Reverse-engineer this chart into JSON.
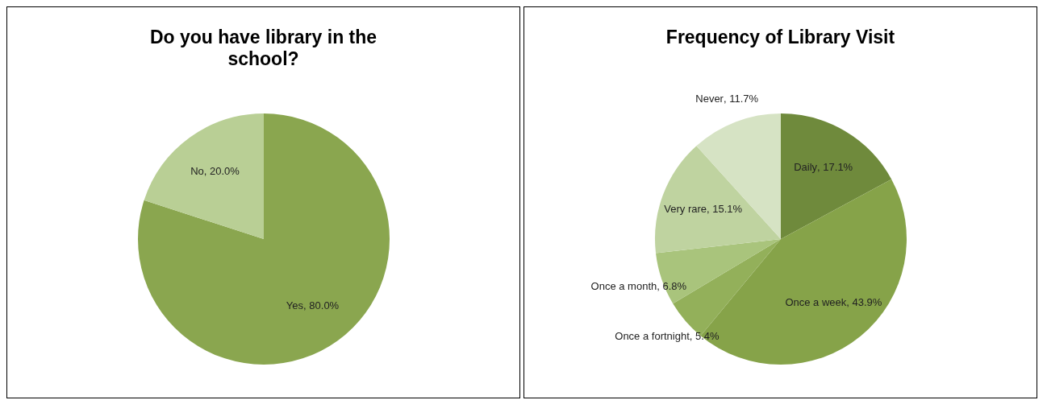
{
  "chart_data": [
    {
      "type": "pie",
      "title": "Do you have library in the school?",
      "categories": [
        "Yes",
        "No"
      ],
      "values": [
        80.0,
        20.0
      ],
      "colors": [
        "#8aa64f",
        "#b9cf95"
      ],
      "value_labels": [
        ", 80.0%",
        ", 20.0%"
      ]
    },
    {
      "type": "pie",
      "title": "Frequency of Library Visit",
      "categories": [
        "Daily",
        "Once a week",
        "Once a fortnight",
        "Once a month",
        "Very rare",
        "Never"
      ],
      "values": [
        17.1,
        43.9,
        5.4,
        6.8,
        15.1,
        11.7
      ],
      "colors": [
        "#6f8a3c",
        "#86a349",
        "#93b05a",
        "#a9c47c",
        "#bfd3a0",
        "#d6e3c4"
      ],
      "value_labels": [
        ", 17.1%",
        ", 43.9%",
        ", 5.4%",
        ", 6.8%",
        ", 15.1%",
        ", 11.7%"
      ]
    }
  ]
}
